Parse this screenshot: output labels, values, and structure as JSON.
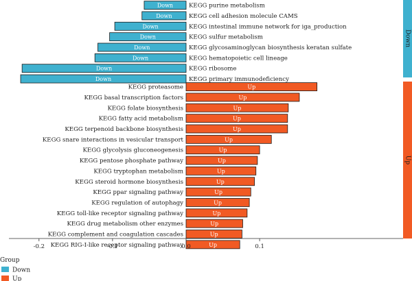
{
  "chart_data": {
    "type": "bar",
    "orientation": "horizontal",
    "facets": [
      "Down",
      "Up"
    ],
    "x_ticks": [
      -0.2,
      -0.1,
      0.0,
      0.1
    ],
    "x_tick_labels": [
      "-0.2",
      "-0.1",
      "0.0",
      "0.1"
    ],
    "xlim": [
      -0.232,
      0.29
    ],
    "legend": {
      "title": "Group",
      "position": "bottom-left",
      "entries": [
        {
          "label": "Down",
          "color": "#3fb1cf"
        },
        {
          "label": "Up",
          "color": "#f15a24"
        }
      ]
    },
    "series": [
      {
        "name": "Down",
        "color": "#3fb1cf",
        "points": [
          {
            "pathway": "KEGG purine metabolism",
            "value": -0.057
          },
          {
            "pathway": "KEGG cell adhesion molecule CAMS",
            "value": -0.06
          },
          {
            "pathway": "KEGG intestinal immune network for iga_production",
            "value": -0.097
          },
          {
            "pathway": "KEGG sulfur metabolism",
            "value": -0.104
          },
          {
            "pathway": "KEGG glycosaminoglycan biosynthesis keratan sulfate",
            "value": -0.12
          },
          {
            "pathway": "KEGG hematopoietic cell  lineage",
            "value": -0.124
          },
          {
            "pathway": "KEGG ribosome",
            "value": -0.223
          },
          {
            "pathway": "KEGG primary immunodeficiency",
            "value": -0.225
          }
        ]
      },
      {
        "name": "Up",
        "color": "#f15a24",
        "points": [
          {
            "pathway": "KEGG proteasome",
            "value": 0.178
          },
          {
            "pathway": "KEGG basal transcription factors",
            "value": 0.154
          },
          {
            "pathway": "KEGG folate biosynthesis",
            "value": 0.139
          },
          {
            "pathway": "KEGG fatty acid metabolism",
            "value": 0.138
          },
          {
            "pathway": "KEGG terpenoid backbone biosynthesis",
            "value": 0.138
          },
          {
            "pathway": "KEGG snare interactions in vesicular transport",
            "value": 0.116
          },
          {
            "pathway": "KEGG glycolysis gluconeogenesis",
            "value": 0.1
          },
          {
            "pathway": "KEGG pentose phosphate pathway",
            "value": 0.097
          },
          {
            "pathway": "KEGG tryptophan metabolism",
            "value": 0.095
          },
          {
            "pathway": "KEGG steroid hormone biosynthesis",
            "value": 0.093
          },
          {
            "pathway": "KEGG ppar signaling pathway",
            "value": 0.088
          },
          {
            "pathway": "KEGG regulation of autophagy",
            "value": 0.086
          },
          {
            "pathway": "KEGG toll-like receptor signaling pathway",
            "value": 0.083
          },
          {
            "pathway": "KEGG drug metabolism other enzymes",
            "value": 0.077
          },
          {
            "pathway": "KEGG complement and coagulation cascades",
            "value": 0.076
          },
          {
            "pathway": "KEGG RIG-I-like receptor signaling pathway",
            "value": 0.073
          }
        ]
      }
    ]
  }
}
